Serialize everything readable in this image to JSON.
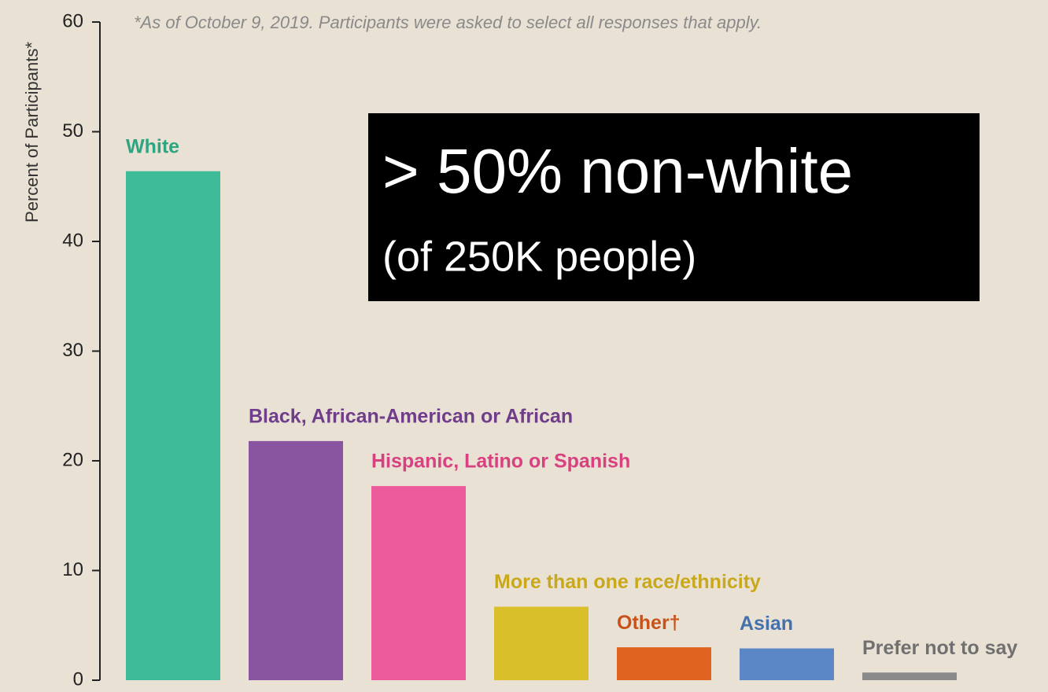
{
  "chart_data": {
    "type": "bar",
    "subtitle": "*As of October 9, 2019. Participants were asked to select all responses that apply.",
    "y_label": "Percent of Participants*",
    "categories": [
      "White",
      "Black, African-American or African",
      "Hispanic, Latino or Spanish",
      "More than one race/ethnicity",
      "Other†",
      "Asian",
      "Prefer not to say"
    ],
    "values": [
      46.4,
      21.8,
      17.7,
      6.7,
      3.0,
      2.9,
      0.7
    ],
    "colors": [
      "#3dbb98",
      "#8a55a0",
      "#ec5b9b",
      "#d9bf2a",
      "#e0641f",
      "#5b87c6",
      "#8a8a8a"
    ],
    "label_colors": [
      "#2ea582",
      "#6f3d8a",
      "#d9407f",
      "#c9a81a",
      "#c8531a",
      "#4470ac",
      "#707070"
    ],
    "ylim": [
      0,
      60
    ],
    "yticks": [
      0,
      10,
      20,
      30,
      40,
      50,
      60
    ],
    "annotations": [
      "> 50% non-white",
      "(of 250K people)"
    ]
  }
}
